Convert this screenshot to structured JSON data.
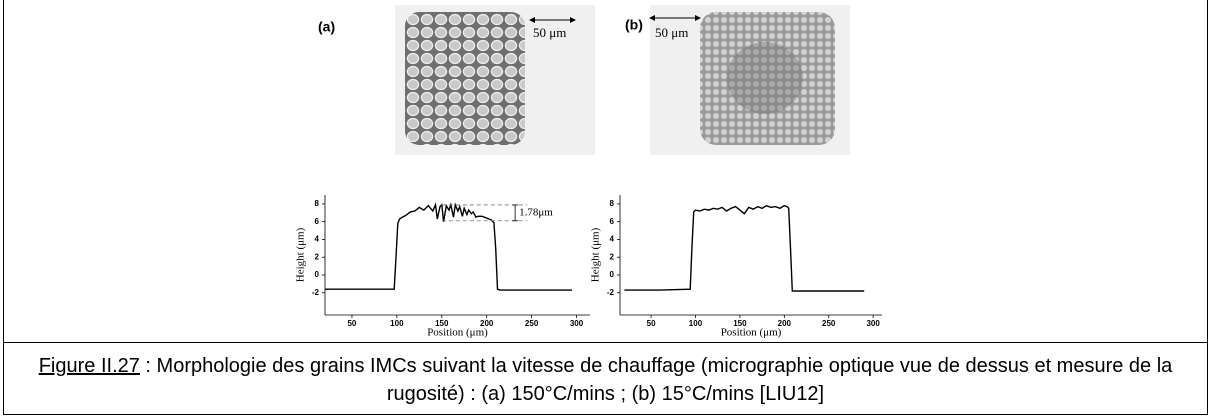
{
  "panels": [
    {
      "label": "(a)",
      "scale_bar": "50 μm"
    },
    {
      "label": "(b)",
      "scale_bar": "50 μm"
    }
  ],
  "chart_data": [
    {
      "type": "line",
      "ylabel": "Height (μm)",
      "xlabel": "Position (μm)",
      "xlim": [
        20,
        315
      ],
      "ylim": [
        -4.5,
        9
      ],
      "xticks": [
        50,
        100,
        150,
        200,
        250,
        300
      ],
      "yticks": [
        -2,
        0,
        2,
        4,
        6,
        8
      ],
      "x": [
        20,
        60,
        97,
        99,
        101,
        103,
        106,
        110,
        115,
        120,
        125,
        130,
        135,
        140,
        143,
        145,
        148,
        150,
        152,
        155,
        158,
        160,
        163,
        165,
        168,
        170,
        173,
        175,
        178,
        180,
        183,
        185,
        188,
        190,
        195,
        200,
        205,
        208,
        210,
        212,
        215,
        250,
        295
      ],
      "values": [
        -1.6,
        -1.6,
        -1.6,
        2,
        5.8,
        6.3,
        6.5,
        6.7,
        7.1,
        7.2,
        7.6,
        7.3,
        7.8,
        7.2,
        7.9,
        6.3,
        7.7,
        7.9,
        6,
        7.8,
        7.3,
        7.9,
        6.5,
        7.9,
        7.2,
        7.7,
        6.6,
        7.5,
        6.8,
        7.3,
        6.9,
        7.1,
        6.5,
        6.6,
        6.6,
        6.4,
        6.2,
        5.9,
        3,
        -1.6,
        -1.7,
        -1.7,
        -1.7
      ],
      "annotation": {
        "text": "1.78μm",
        "x": [
          150,
          245
        ],
        "y": [
          6.1,
          7.88
        ]
      }
    },
    {
      "type": "line",
      "ylabel": "Height (μm)",
      "xlabel": "Position (μm)",
      "xlim": [
        15,
        310
      ],
      "ylim": [
        -4.5,
        9
      ],
      "xticks": [
        50,
        100,
        150,
        200,
        250,
        300
      ],
      "yticks": [
        -2,
        0,
        2,
        4,
        6,
        8
      ],
      "x": [
        20,
        60,
        94,
        96,
        98,
        100,
        105,
        110,
        115,
        120,
        125,
        130,
        135,
        140,
        145,
        150,
        155,
        160,
        165,
        170,
        175,
        180,
        185,
        190,
        195,
        200,
        203,
        205,
        207,
        209,
        215,
        250,
        290
      ],
      "values": [
        -1.7,
        -1.7,
        -1.6,
        3,
        7.1,
        7.3,
        7.2,
        7.4,
        7.3,
        7.5,
        7.4,
        7.6,
        7.2,
        7.5,
        7.7,
        7.3,
        6.9,
        7.6,
        7.4,
        7.7,
        7.5,
        7.8,
        7.6,
        7.7,
        7.5,
        7.8,
        7.7,
        7.5,
        3,
        -1.8,
        -1.8,
        -1.8,
        -1.8
      ]
    }
  ],
  "caption": {
    "ref": "Figure II.27",
    "text": " : Morphologie des grains IMCs suivant la vitesse de chauffage (micrographie optique vue de dessus et mesure de la rugosité) : (a) 150°C/mins ; (b) 15°C/mins [LIU12]"
  }
}
